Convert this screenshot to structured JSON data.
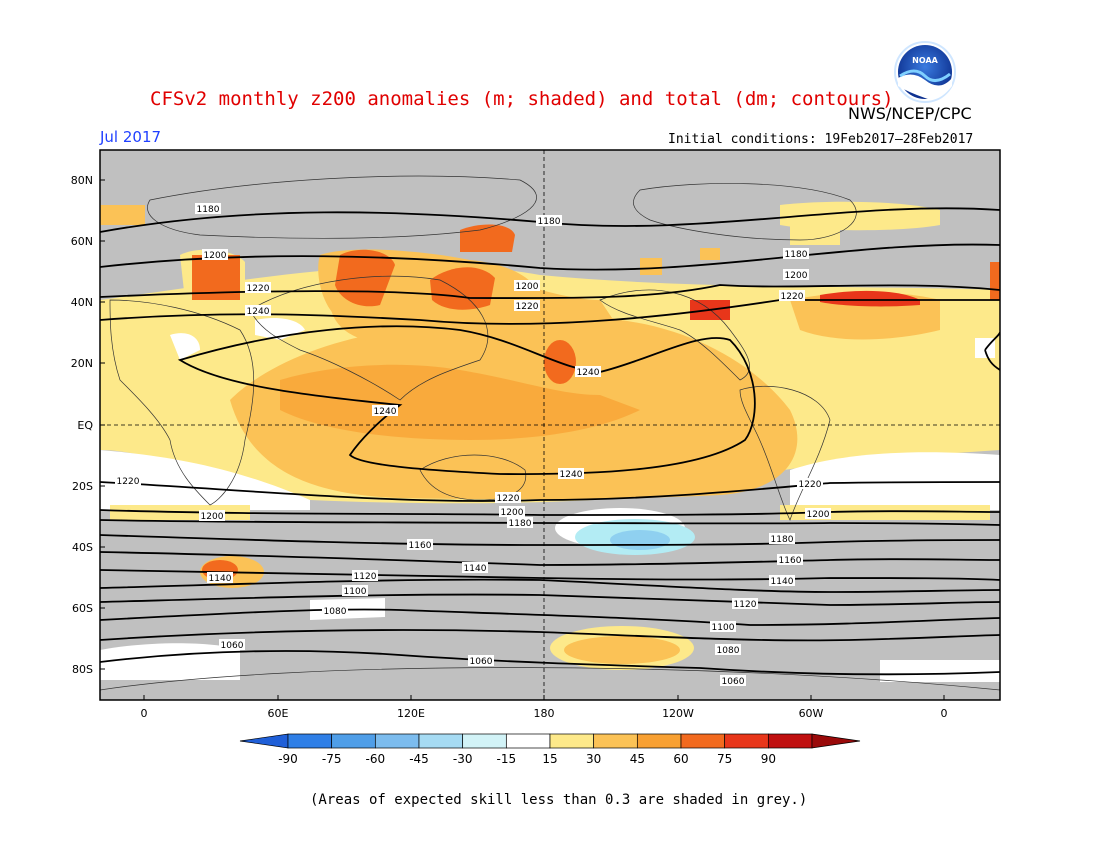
{
  "header": {
    "title": "CFSv2 monthly z200 anomalies (m; shaded) and total (dm; contours)",
    "agency": "NWS/NCEP/CPC",
    "month": "Jul 2017",
    "initial_conditions": "Initial conditions: 19Feb2017–28Feb2017",
    "logo_text": "NOAA"
  },
  "map": {
    "lat_labels": [
      "80N",
      "60N",
      "40N",
      "20N",
      "EQ",
      "20S",
      "40S",
      "60S",
      "80S"
    ],
    "lon_labels": [
      "0",
      "60E",
      "120E",
      "180",
      "120W",
      "60W",
      "0"
    ],
    "colors": {
      "grey": "#c0c0c0",
      "white": "#ffffff",
      "c15": "#fde98a",
      "c30": "#fbc256",
      "c45": "#f8a032",
      "c60": "#f26a1e",
      "c75": "#e8361a",
      "c90": "#c01010",
      "neg15": "#b3ecf4",
      "neg30": "#8fd0f0",
      "neg45": "#5eb0ec"
    },
    "contour_labels": [
      "1180",
      "1180",
      "1180",
      "1200",
      "1200",
      "1200",
      "1220",
      "1220",
      "1220",
      "1240",
      "1240",
      "1240",
      "1240",
      "1220",
      "1220",
      "1220",
      "1200",
      "1200",
      "1200",
      "1180",
      "1180",
      "1160",
      "1160",
      "1140",
      "1140",
      "1140",
      "1120",
      "1120",
      "1100",
      "1100",
      "1080",
      "1080",
      "1060",
      "1060",
      "1060"
    ]
  },
  "colorbar": {
    "ticks": [
      "-90",
      "-75",
      "-60",
      "-45",
      "-30",
      "-15",
      "15",
      "30",
      "45",
      "60",
      "75",
      "90"
    ],
    "colors": [
      "#1f5fd8",
      "#2f7fe6",
      "#4f9ee8",
      "#7cbcee",
      "#a6dbf3",
      "#d2f3f7",
      "#ffffff",
      "#fde98a",
      "#fbc256",
      "#f8a032",
      "#f26a1e",
      "#e8361a",
      "#c01010",
      "#9a0a0a"
    ]
  },
  "footer": {
    "note": "(Areas of expected skill less than 0.3 are shaded in grey.)"
  }
}
